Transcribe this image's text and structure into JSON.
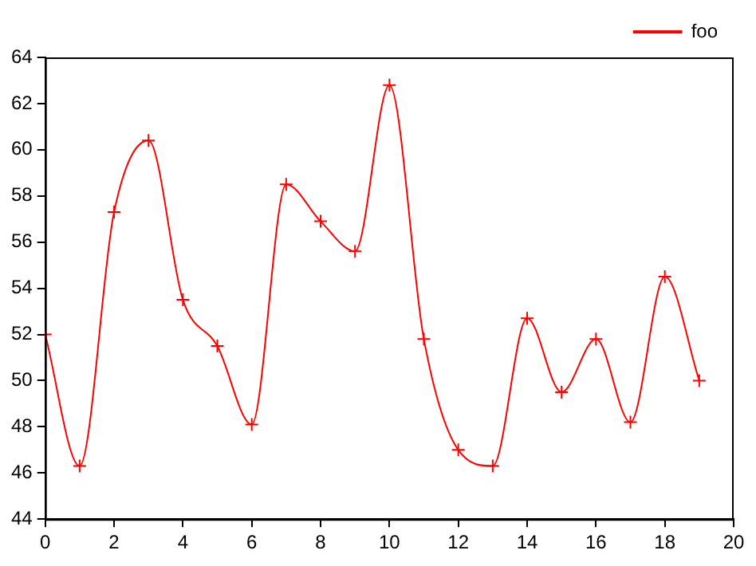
{
  "chart_data": {
    "type": "line",
    "x": [
      0,
      1,
      2,
      3,
      4,
      5,
      6,
      7,
      8,
      9,
      10,
      11,
      12,
      13,
      14,
      15,
      16,
      17,
      18,
      19
    ],
    "series": [
      {
        "name": "foo",
        "color": "#ff0000",
        "values": [
          52.0,
          46.3,
          57.3,
          60.4,
          53.5,
          51.5,
          48.1,
          58.5,
          56.9,
          55.6,
          62.8,
          51.8,
          47.0,
          46.3,
          52.7,
          49.5,
          51.8,
          48.2,
          54.5,
          50.0
        ]
      }
    ],
    "xlim": [
      0,
      20
    ],
    "xticks": [
      0,
      2,
      4,
      6,
      8,
      10,
      12,
      14,
      16,
      18,
      20
    ],
    "ylim": [
      44,
      64
    ],
    "yticks": [
      44,
      46,
      48,
      50,
      52,
      54,
      56,
      58,
      60,
      62,
      64
    ],
    "grid": false,
    "legend": "top right",
    "marker": "cross",
    "line_style": "solid"
  }
}
